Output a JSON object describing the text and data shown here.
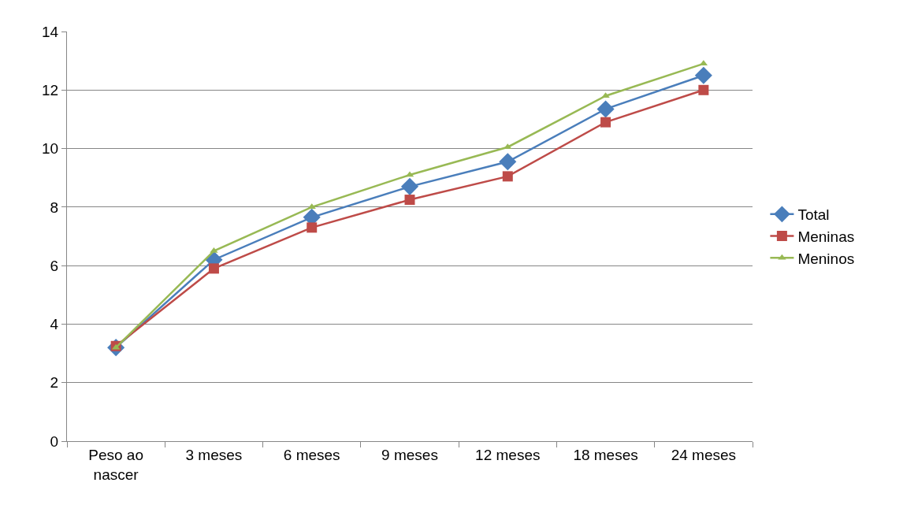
{
  "chart_data": {
    "type": "line",
    "categories": [
      "Peso ao nascer",
      "3 meses",
      "6 meses",
      "9 meses",
      "12 meses",
      "18 meses",
      "24 meses"
    ],
    "series": [
      {
        "name": "Total",
        "color": "#4a7ebb",
        "marker": "diamond",
        "values": [
          3.2,
          6.2,
          7.65,
          8.7,
          9.55,
          11.35,
          12.5
        ]
      },
      {
        "name": "Meninas",
        "color": "#be4b48",
        "marker": "square",
        "values": [
          3.25,
          5.9,
          7.3,
          8.25,
          9.05,
          10.9,
          12.0
        ]
      },
      {
        "name": "Meninos",
        "color": "#98b954",
        "marker": "triangle",
        "values": [
          3.2,
          6.5,
          8.0,
          9.1,
          10.05,
          11.8,
          12.9
        ]
      }
    ],
    "ylim": [
      0,
      14
    ],
    "yticks": [
      0,
      2,
      4,
      6,
      8,
      10,
      12,
      14
    ],
    "grid": "y",
    "legend": "right",
    "line_style": "solid"
  }
}
